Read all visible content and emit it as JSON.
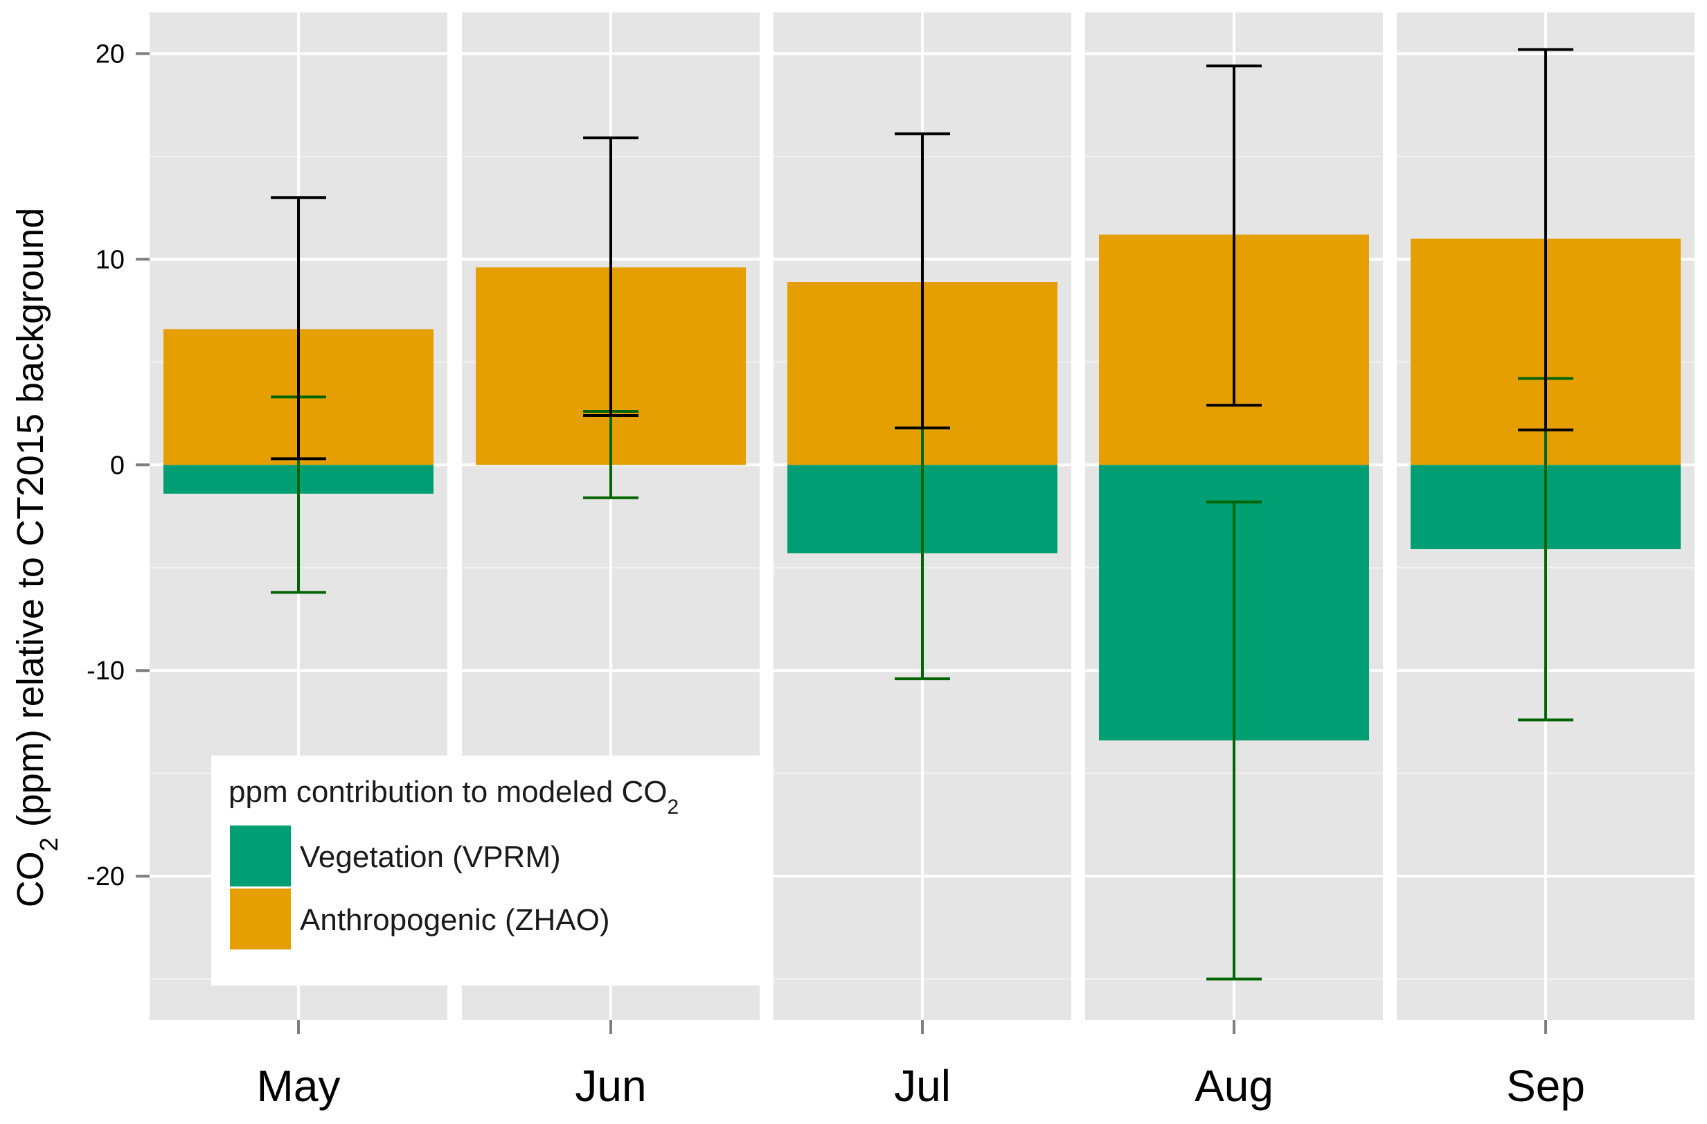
{
  "chart_data": {
    "type": "bar",
    "xlabel": "",
    "ylabel": {
      "prefix": "CO",
      "subscript": "2",
      "suffix": " (ppm) relative to CT2015 background"
    },
    "ylim": [
      -27,
      22
    ],
    "yticks": [
      20,
      10,
      0,
      -10,
      -20
    ],
    "ytick_labels": [
      "20",
      "10",
      "0",
      "-10",
      "-20"
    ],
    "grid": true,
    "facets": [
      "May",
      "Jun",
      "Jul",
      "Aug",
      "Sep"
    ],
    "series": [
      {
        "name": "Vegetation (VPRM)",
        "color": "#009E73",
        "errorbar_color": "#006400",
        "values": [
          -1.4,
          0.5,
          -4.3,
          -13.4,
          -4.1
        ],
        "error_low": [
          -6.2,
          -1.6,
          -10.4,
          -25.0,
          -12.4
        ],
        "error_high": [
          3.3,
          2.6,
          1.8,
          -1.8,
          4.2
        ]
      },
      {
        "name": "Anthropogenic (ZHAO)",
        "color": "#E69F00",
        "errorbar_color": "#000000",
        "values": [
          6.6,
          9.6,
          8.9,
          11.2,
          11.0
        ],
        "error_low": [
          0.3,
          2.4,
          1.8,
          2.9,
          1.7
        ],
        "error_high": [
          13.0,
          15.9,
          16.1,
          19.4,
          20.2
        ]
      }
    ],
    "legend": {
      "title": {
        "prefix": "ppm contribution to modeled CO",
        "subscript": "2"
      },
      "position": "bottom-left",
      "items": [
        "Vegetation (VPRM)",
        "Anthropogenic (ZHAO)"
      ]
    },
    "panel_background": "#E5E5E5",
    "grid_color": "#FFFFFF"
  }
}
